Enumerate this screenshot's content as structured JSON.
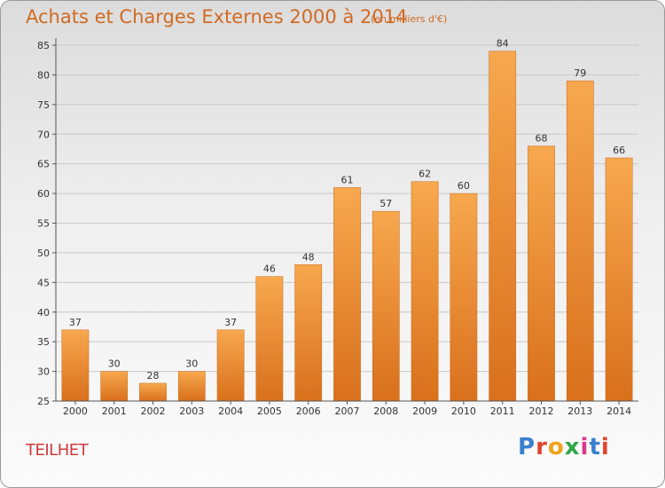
{
  "header": {
    "title": "Achats et Charges Externes 2000 à 2014",
    "subtitle": "(en milliers d'€)"
  },
  "footer": {
    "commune": "TEILHET",
    "logo_text": "Proxiti",
    "logo_colors": [
      "#3a7fd0",
      "#e2452f",
      "#f0a21a",
      "#2fa84a",
      "#d93a8c",
      "#3a7fd0",
      "#e2452f"
    ]
  },
  "colors": {
    "bar_top": "#f7a84e",
    "bar_bottom": "#d9701c",
    "axis": "#555555",
    "grid": "#c8c8c8",
    "title": "#d06a22",
    "commune": "#d03a3a"
  },
  "chart_data": {
    "type": "bar",
    "title": "Achats et Charges Externes 2000 à 2014",
    "subtitle": "(en milliers d'€)",
    "xlabel": "",
    "ylabel": "",
    "categories": [
      "2000",
      "2001",
      "2002",
      "2003",
      "2004",
      "2005",
      "2006",
      "2007",
      "2008",
      "2009",
      "2010",
      "2011",
      "2012",
      "2013",
      "2014"
    ],
    "values": [
      37,
      30,
      28,
      30,
      37,
      46,
      48,
      61,
      57,
      62,
      60,
      84,
      68,
      79,
      66
    ],
    "ylim": [
      25,
      85
    ],
    "yticks": [
      25,
      30,
      35,
      40,
      45,
      50,
      55,
      60,
      65,
      70,
      75,
      80,
      85
    ],
    "grid": true,
    "data_labels": true
  }
}
